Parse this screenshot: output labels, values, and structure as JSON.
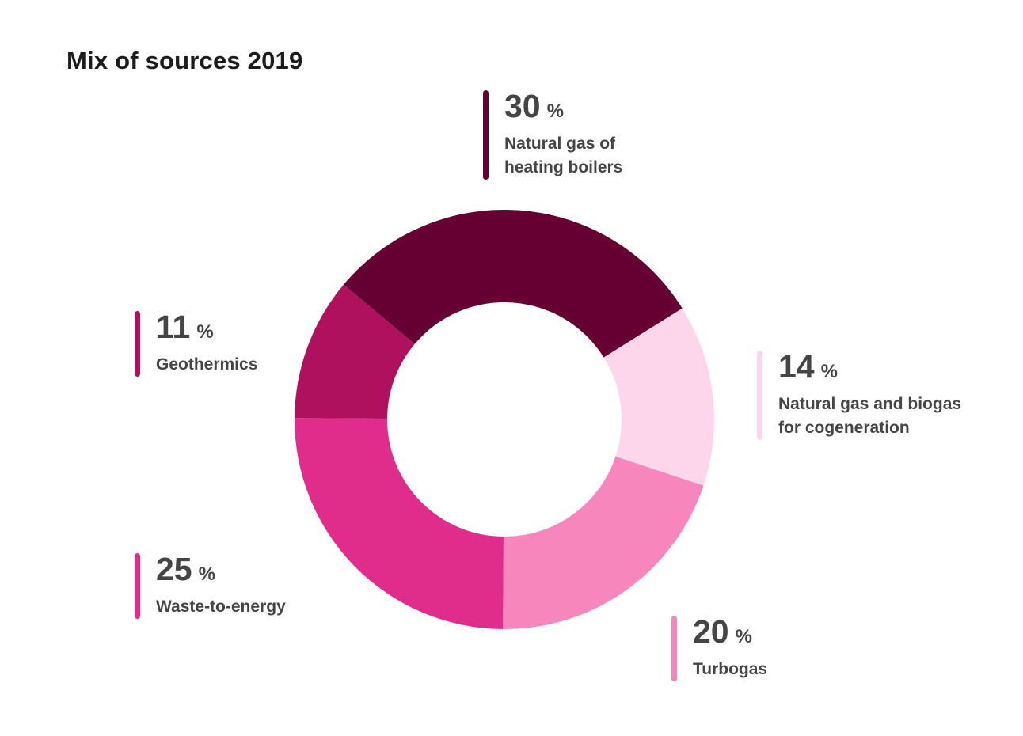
{
  "chart_data": {
    "type": "pie",
    "title": "Mix of sources 2019",
    "unit": "%",
    "donut": true,
    "legend": "callouts-around-chart",
    "slices": [
      {
        "label": "Natural gas of heating boilers",
        "label_lines": [
          "Natural gas of",
          "heating boilers"
        ],
        "value": 30,
        "color": "#660033"
      },
      {
        "label": "Natural gas and biogas for cogeneration",
        "label_lines": [
          "Natural gas and biogas",
          "for cogeneration"
        ],
        "value": 14,
        "color": "#fdd6eb"
      },
      {
        "label": "Turbogas",
        "label_lines": [
          "Turbogas"
        ],
        "value": 20,
        "color": "#f786bd"
      },
      {
        "label": "Waste-to-energy",
        "label_lines": [
          "Waste-to-energy"
        ],
        "value": 25,
        "color": "#e02c8a"
      },
      {
        "label": "Geothermics",
        "label_lines": [
          "Geothermics"
        ],
        "value": 11,
        "color": "#af115f"
      }
    ]
  }
}
